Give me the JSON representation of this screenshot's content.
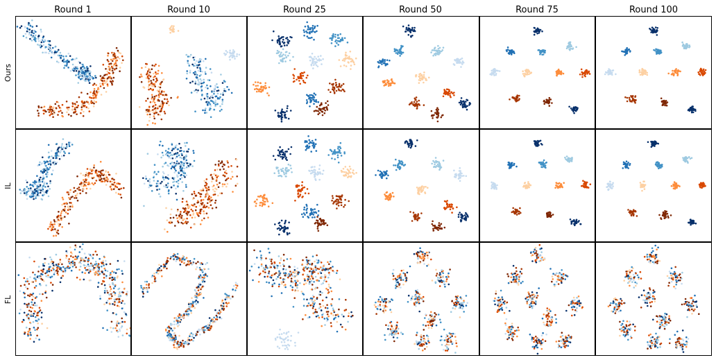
{
  "figure": {
    "column_titles": [
      "Round 1",
      "Round 10",
      "Round 25",
      "Round 50",
      "Round 75",
      "Round 100"
    ],
    "row_labels": [
      "Ours",
      "IL",
      "FL"
    ]
  },
  "chart_data": {
    "type": "scatter",
    "layout": "grid 3 rows x 6 columns of t-SNE embedding scatter panels",
    "axes": "no ticks, no tick labels",
    "grid": false,
    "legend": "none",
    "palette": [
      "#08306b",
      "#2171b5",
      "#4292c6",
      "#9ecae1",
      "#c6dbef",
      "#fdd0a2",
      "#fd8d3c",
      "#d94801",
      "#a63603",
      "#7f2704"
    ],
    "panels": [
      {
        "row": "Ours",
        "column": "Round 1",
        "pattern": "two-elongated-arcs"
      },
      {
        "row": "Ours",
        "column": "Round 10",
        "pattern": "loose-groups"
      },
      {
        "row": "Ours",
        "column": "Round 25",
        "pattern": "scattered-clusters"
      },
      {
        "row": "Ours",
        "column": "Round 50",
        "pattern": "separated-clusters"
      },
      {
        "row": "Ours",
        "column": "Round 75",
        "pattern": "tight-clusters"
      },
      {
        "row": "Ours",
        "column": "Round 100",
        "pattern": "tight-clusters"
      },
      {
        "row": "IL",
        "column": "Round 1",
        "pattern": "two-elongated-arcs"
      },
      {
        "row": "IL",
        "column": "Round 10",
        "pattern": "two-blobs"
      },
      {
        "row": "IL",
        "column": "Round 25",
        "pattern": "scattered-clusters"
      },
      {
        "row": "IL",
        "column": "Round 50",
        "pattern": "separated-clusters"
      },
      {
        "row": "IL",
        "column": "Round 75",
        "pattern": "tight-clusters"
      },
      {
        "row": "IL",
        "column": "Round 100",
        "pattern": "tight-clusters"
      },
      {
        "row": "FL",
        "column": "Round 1",
        "pattern": "mixed-arch"
      },
      {
        "row": "FL",
        "column": "Round 10",
        "pattern": "mixed-s-curve"
      },
      {
        "row": "FL",
        "column": "Round 25",
        "pattern": "mixed-cloud"
      },
      {
        "row": "FL",
        "column": "Round 50",
        "pattern": "mixed-clusters"
      },
      {
        "row": "FL",
        "column": "Round 75",
        "pattern": "mixed-clusters"
      },
      {
        "row": "FL",
        "column": "Round 100",
        "pattern": "mixed-clusters"
      }
    ]
  }
}
